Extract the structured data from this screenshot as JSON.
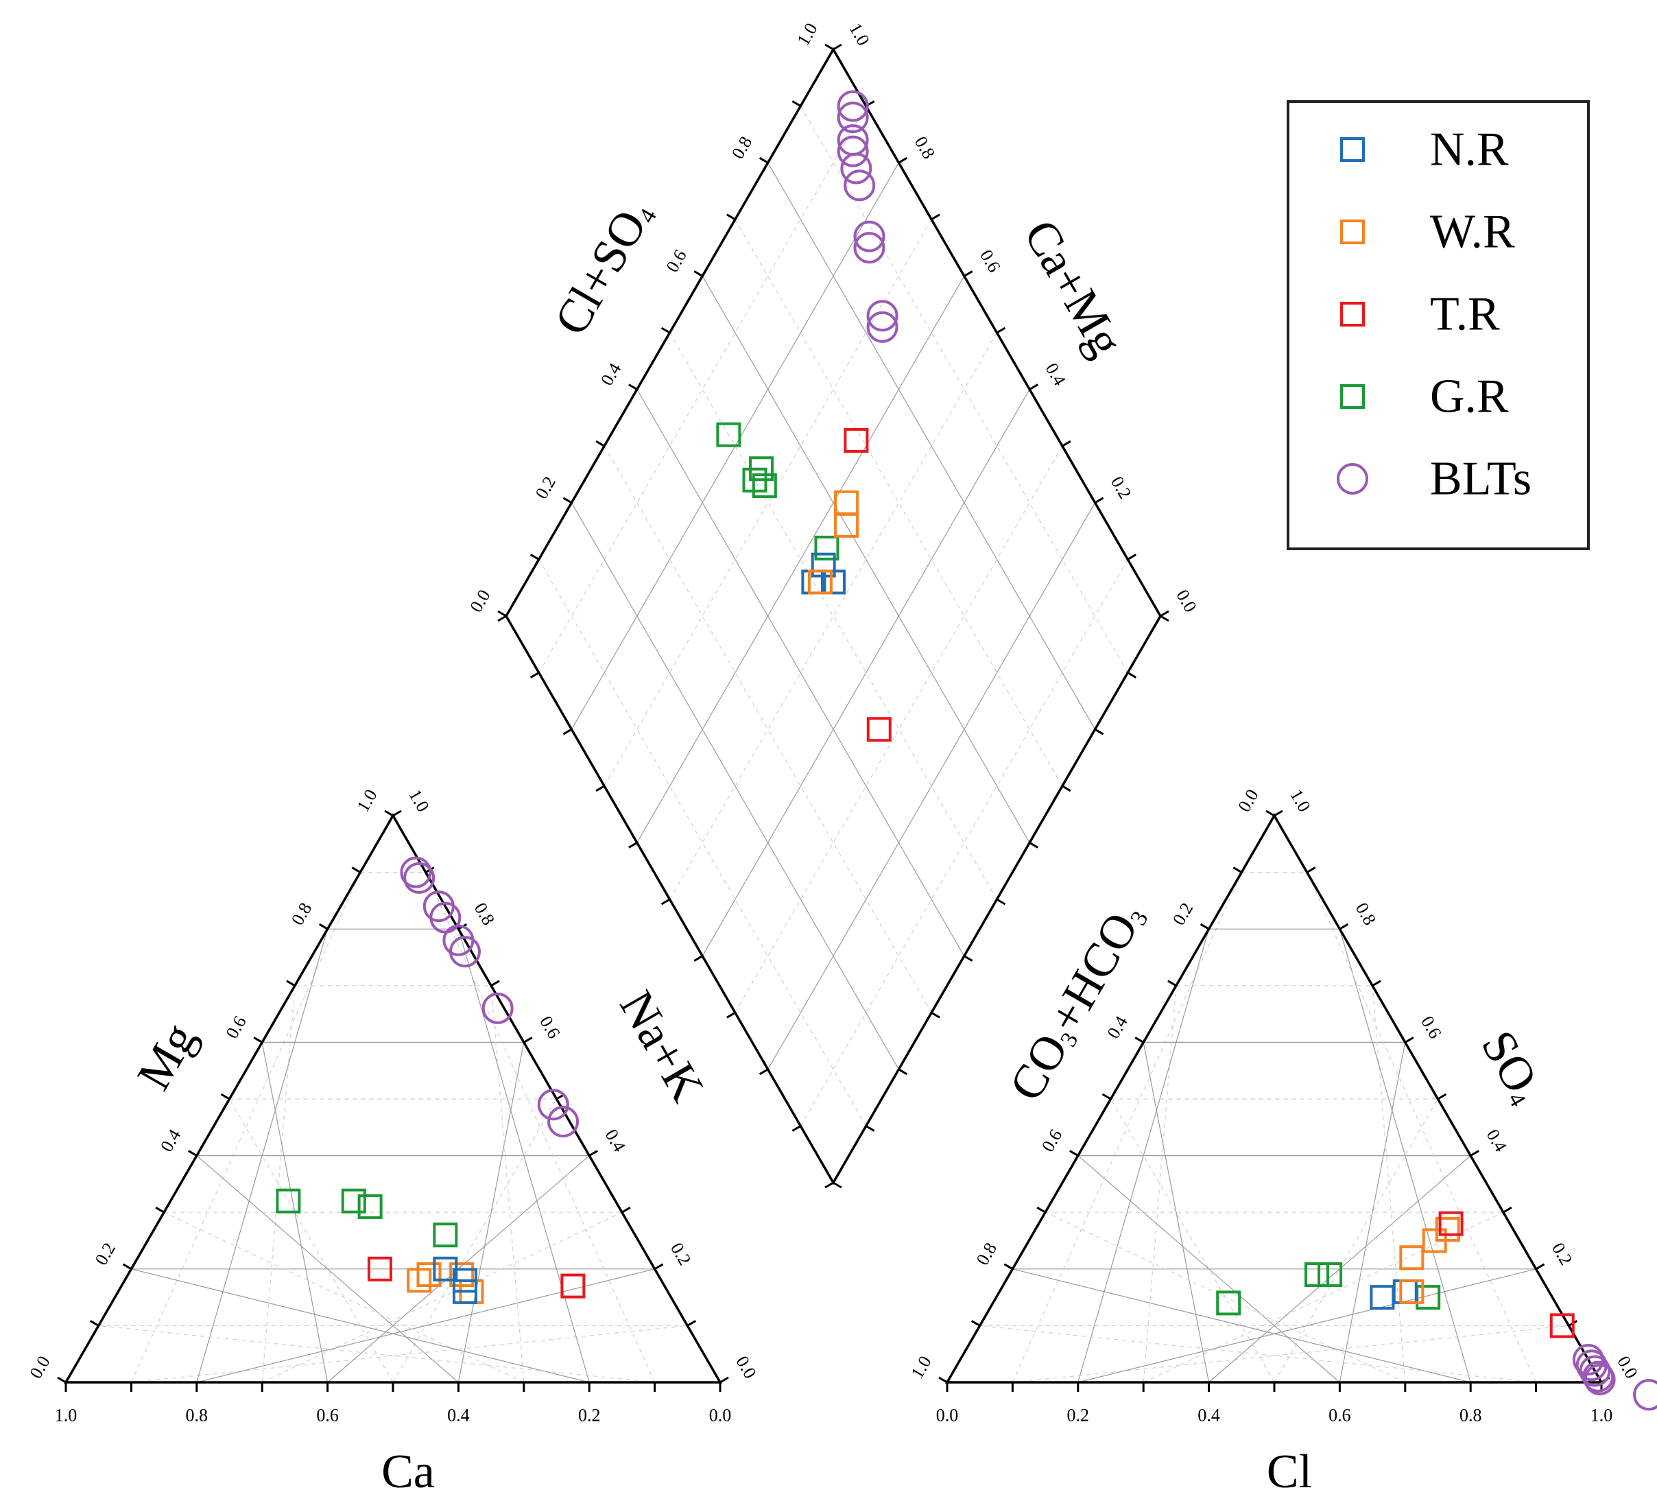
{
  "chart_data": {
    "type": "scatter",
    "subtype": "piper-diagram",
    "title": "",
    "legend_position": "top-right",
    "series": [
      {
        "name": "N.R",
        "color": "#1f6fb4",
        "marker": "square"
      },
      {
        "name": "W.R",
        "color": "#f58220",
        "marker": "square"
      },
      {
        "name": "T.R",
        "color": "#e8181e",
        "marker": "square"
      },
      {
        "name": "G.R",
        "color": "#1a9a35",
        "marker": "square"
      },
      {
        "name": "BLTs",
        "color": "#9b59b6",
        "marker": "circle"
      }
    ],
    "cation_triangle": {
      "xlabel": "Ca",
      "left_label": "Mg",
      "right_label": "Na+K",
      "base_ticks": [
        "1.0",
        "0.8",
        "0.6",
        "0.4",
        "0.2",
        "0.0"
      ],
      "left_ticks": [
        "0.0",
        "0.2",
        "0.4",
        "0.6",
        "0.8",
        "1.0"
      ],
      "right_ticks": [
        "0.0",
        "0.2",
        "0.4",
        "0.6",
        "0.8",
        "1.0"
      ],
      "points": [
        {
          "series": "G.R",
          "Ca": 0.5,
          "Mg": 0.32,
          "NaK": 0.18
        },
        {
          "series": "G.R",
          "Ca": 0.4,
          "Mg": 0.32,
          "NaK": 0.28
        },
        {
          "series": "G.R",
          "Ca": 0.38,
          "Mg": 0.31,
          "NaK": 0.31
        },
        {
          "series": "G.R",
          "Ca": 0.29,
          "Mg": 0.26,
          "NaK": 0.45
        },
        {
          "series": "T.R",
          "Ca": 0.42,
          "Mg": 0.2,
          "NaK": 0.38
        },
        {
          "series": "T.R",
          "Ca": 0.14,
          "Mg": 0.17,
          "NaK": 0.69
        },
        {
          "series": "W.R",
          "Ca": 0.37,
          "Mg": 0.18,
          "NaK": 0.45
        },
        {
          "series": "W.R",
          "Ca": 0.35,
          "Mg": 0.19,
          "NaK": 0.46
        },
        {
          "series": "W.R",
          "Ca": 0.3,
          "Mg": 0.19,
          "NaK": 0.51
        },
        {
          "series": "W.R",
          "Ca": 0.3,
          "Mg": 0.16,
          "NaK": 0.54
        },
        {
          "series": "N.R",
          "Ca": 0.32,
          "Mg": 0.2,
          "NaK": 0.48
        },
        {
          "series": "N.R",
          "Ca": 0.31,
          "Mg": 0.16,
          "NaK": 0.53
        },
        {
          "series": "N.R",
          "Ca": 0.3,
          "Mg": 0.18,
          "NaK": 0.52
        },
        {
          "series": "BLTs",
          "Ca": 0.015,
          "Mg": 0.9,
          "NaK": 0.085
        },
        {
          "series": "BLTs",
          "Ca": 0.015,
          "Mg": 0.89,
          "NaK": 0.095
        },
        {
          "series": "BLTs",
          "Ca": 0.01,
          "Mg": 0.84,
          "NaK": 0.15
        },
        {
          "series": "BLTs",
          "Ca": 0.01,
          "Mg": 0.82,
          "NaK": 0.17
        },
        {
          "series": "BLTs",
          "Ca": 0.01,
          "Mg": 0.78,
          "NaK": 0.21
        },
        {
          "series": "BLTs",
          "Ca": 0.01,
          "Mg": 0.76,
          "NaK": 0.23
        },
        {
          "series": "BLTs",
          "Ca": 0.01,
          "Mg": 0.66,
          "NaK": 0.33
        },
        {
          "series": "BLTs",
          "Ca": 0.01,
          "Mg": 0.49,
          "NaK": 0.5
        },
        {
          "series": "BLTs",
          "Ca": 0.01,
          "Mg": 0.46,
          "NaK": 0.53
        }
      ]
    },
    "anion_triangle": {
      "xlabel": "Cl",
      "left_label": "CO3+HCO3",
      "right_label": "SO4",
      "base_ticks": [
        "0.0",
        "0.2",
        "0.4",
        "0.6",
        "0.8",
        "1.0"
      ],
      "left_ticks": [
        "1.0",
        "0.8",
        "0.6",
        "0.4",
        "0.2",
        "0.0"
      ],
      "right_ticks": [
        "0.0",
        "0.2",
        "0.4",
        "0.6",
        "0.8",
        "1.0"
      ],
      "points": [
        {
          "series": "G.R",
          "Cl": 0.36,
          "SO4": 0.14
        },
        {
          "series": "G.R",
          "Cl": 0.47,
          "SO4": 0.19
        },
        {
          "series": "G.R",
          "Cl": 0.49,
          "SO4": 0.19
        },
        {
          "series": "G.R",
          "Cl": 0.66,
          "SO4": 0.15
        },
        {
          "series": "N.R",
          "Cl": 0.59,
          "SO4": 0.15
        },
        {
          "series": "N.R",
          "Cl": 0.62,
          "SO4": 0.16
        },
        {
          "series": "W.R",
          "Cl": 0.63,
          "SO4": 0.16
        },
        {
          "series": "W.R",
          "Cl": 0.6,
          "SO4": 0.22
        },
        {
          "series": "W.R",
          "Cl": 0.62,
          "SO4": 0.25
        },
        {
          "series": "W.R",
          "Cl": 0.63,
          "SO4": 0.27
        },
        {
          "series": "T.R",
          "Cl": 0.63,
          "SO4": 0.28
        },
        {
          "series": "T.R",
          "Cl": 0.89,
          "SO4": 0.1
        },
        {
          "series": "BLTs",
          "Cl": 0.95,
          "SO4": 0.1
        },
        {
          "series": "BLTs",
          "Cl": 0.96,
          "SO4": 0.04
        },
        {
          "series": "BLTs",
          "Cl": 0.97,
          "SO4": 0.03
        },
        {
          "series": "BLTs",
          "Cl": 0.98,
          "SO4": 0.02
        },
        {
          "series": "BLTs",
          "Cl": 0.99,
          "SO4": 0.01
        },
        {
          "series": "BLTs",
          "Cl": 0.995,
          "SO4": 0.005
        }
      ]
    },
    "diamond": {
      "left_label": "Cl+SO4",
      "right_label": "Ca+Mg",
      "left_ticks": [
        "0.0",
        "0.2",
        "0.4",
        "0.6",
        "0.8",
        "1.0"
      ],
      "right_ticks": [
        "0.0",
        "0.2",
        "0.4",
        "0.6",
        "0.8",
        "1.0"
      ],
      "points": [
        {
          "series": "G.R",
          "ClSO4": 0.5,
          "CaMg": 0.18
        },
        {
          "series": "G.R",
          "ClSO4": 0.52,
          "CaMg": 0.26
        },
        {
          "series": "G.R",
          "ClSO4": 0.5,
          "CaMg": 0.26
        },
        {
          "series": "G.R",
          "ClSO4": 0.51,
          "CaMg": 0.28
        },
        {
          "series": "G.R",
          "ClSO4": 0.55,
          "CaMg": 0.43
        },
        {
          "series": "N.R",
          "ClSO4": 0.5,
          "CaMg": 0.44
        },
        {
          "series": "N.R",
          "ClSO4": 0.53,
          "CaMg": 0.44
        },
        {
          "series": "N.R",
          "ClSO4": 0.53,
          "CaMg": 0.47
        },
        {
          "series": "W.R",
          "ClSO4": 0.51,
          "CaMg": 0.45
        },
        {
          "series": "W.R",
          "ClSO4": 0.6,
          "CaMg": 0.44
        },
        {
          "series": "W.R",
          "ClSO4": 0.62,
          "CaMg": 0.42
        },
        {
          "series": "T.R",
          "ClSO4": 0.69,
          "CaMg": 0.38
        },
        {
          "series": "T.R",
          "ClSO4": 0.47,
          "CaMg": 0.67
        },
        {
          "series": "BLTs",
          "ClSO4": 0.98,
          "CaMg": 0.08
        },
        {
          "series": "BLTs",
          "ClSO4": 0.97,
          "CaMg": 0.09
        },
        {
          "series": "BLTs",
          "ClSO4": 0.95,
          "CaMg": 0.11
        },
        {
          "series": "BLTs",
          "ClSO4": 0.94,
          "CaMg": 0.12
        },
        {
          "series": "BLTs",
          "ClSO4": 0.93,
          "CaMg": 0.14
        },
        {
          "series": "BLTs",
          "ClSO4": 0.92,
          "CaMg": 0.16
        },
        {
          "series": "BLTs",
          "ClSO4": 0.89,
          "CaMg": 0.22
        },
        {
          "series": "BLTs",
          "ClSO4": 0.88,
          "CaMg": 0.23
        },
        {
          "series": "BLTs",
          "ClSO4": 0.84,
          "CaMg": 0.31
        },
        {
          "series": "BLTs",
          "ClSO4": 0.83,
          "CaMg": 0.32
        }
      ]
    }
  }
}
